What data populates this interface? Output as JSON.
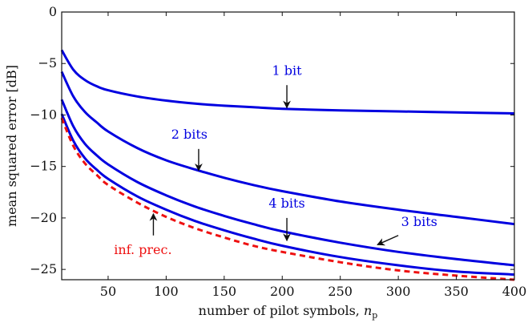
{
  "chart_data": {
    "type": "line",
    "title": "",
    "xlabel": "number of pilot symbols, ",
    "xlabel_var": "n",
    "xlabel_sub": "p",
    "ylabel": "mean squared error [dB]",
    "xlim": [
      10,
      400
    ],
    "ylim": [
      -26,
      0
    ],
    "xticks": [
      50,
      100,
      150,
      200,
      250,
      300,
      350,
      400
    ],
    "yticks": [
      0,
      -5,
      -10,
      -15,
      -20,
      -25
    ],
    "grid": false,
    "x": [
      10,
      20,
      30,
      40,
      50,
      75,
      100,
      125,
      150,
      175,
      200,
      250,
      300,
      350,
      400
    ],
    "series": [
      {
        "name": "1 bit",
        "color": "#0000e0",
        "style": "solid",
        "values": [
          -3.7,
          -5.6,
          -6.6,
          -7.2,
          -7.6,
          -8.2,
          -8.6,
          -8.9,
          -9.1,
          -9.25,
          -9.4,
          -9.55,
          -9.65,
          -9.75,
          -9.85
        ]
      },
      {
        "name": "2 bits",
        "color": "#0000e0",
        "style": "solid",
        "values": [
          -5.8,
          -8.2,
          -9.7,
          -10.7,
          -11.6,
          -13.2,
          -14.4,
          -15.3,
          -16.1,
          -16.8,
          -17.4,
          -18.4,
          -19.2,
          -19.9,
          -20.6
        ]
      },
      {
        "name": "3 bits",
        "color": "#0000e0",
        "style": "solid",
        "values": [
          -8.5,
          -11.1,
          -12.8,
          -13.9,
          -14.8,
          -16.5,
          -17.8,
          -18.9,
          -19.8,
          -20.6,
          -21.3,
          -22.4,
          -23.3,
          -24.0,
          -24.6
        ]
      },
      {
        "name": "4 bits",
        "color": "#0000e0",
        "style": "solid",
        "values": [
          -9.9,
          -12.5,
          -14.2,
          -15.3,
          -16.2,
          -17.9,
          -19.2,
          -20.3,
          -21.2,
          -22.0,
          -22.7,
          -23.8,
          -24.6,
          -25.2,
          -25.5
        ]
      },
      {
        "name": "inf. prec.",
        "color": "#ee1111",
        "style": "dashed",
        "values": [
          -10.3,
          -13.0,
          -14.7,
          -15.8,
          -16.8,
          -18.5,
          -19.9,
          -21.0,
          -21.9,
          -22.7,
          -23.3,
          -24.3,
          -25.1,
          -25.6,
          -26.0
        ]
      }
    ],
    "annotations": [
      {
        "label": "1 bit",
        "color": "#0000e0",
        "text_x": 204,
        "text_y": -6.1,
        "arrow_from": [
          204,
          -7.1
        ],
        "arrow_to": [
          204,
          -9.3
        ]
      },
      {
        "label": "2 bits",
        "color": "#0000e0",
        "text_x": 120,
        "text_y": -12.3,
        "arrow_from": [
          128,
          -13.3
        ],
        "arrow_to": [
          128,
          -15.4
        ]
      },
      {
        "label": "4 bits",
        "color": "#0000e0",
        "text_x": 204,
        "text_y": -19.0,
        "arrow_from": [
          204,
          -20.0
        ],
        "arrow_to": [
          204,
          -22.2
        ]
      },
      {
        "label": "3 bits",
        "color": "#0000e0",
        "text_x": 318,
        "text_y": -20.8,
        "arrow_from": [
          300,
          -21.7
        ],
        "arrow_to": [
          282,
          -22.6
        ]
      },
      {
        "label": "inf. prec.",
        "color": "#ee1111",
        "text_x": 80,
        "text_y": -23.5,
        "arrow_from": [
          89,
          -21.7
        ],
        "arrow_to": [
          89,
          -19.6
        ]
      }
    ]
  }
}
